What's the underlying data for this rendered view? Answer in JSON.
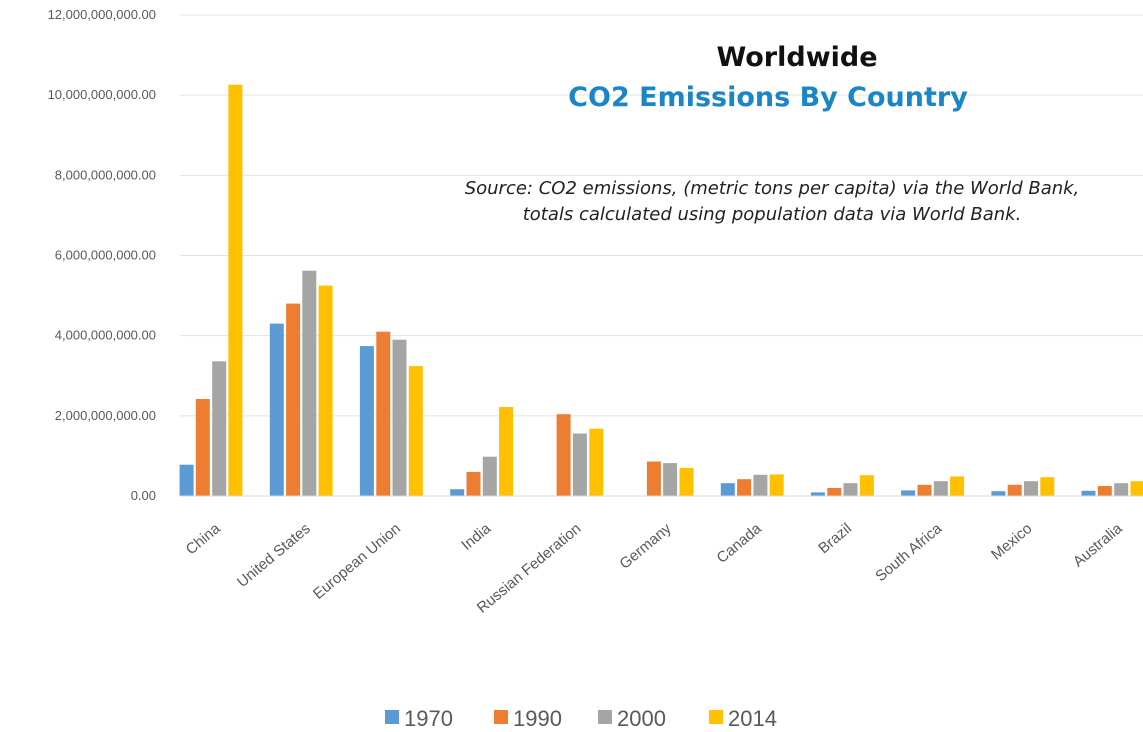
{
  "chart_data": {
    "type": "bar",
    "title": "Worldwide",
    "subtitle": "CO2 Emissions By Country",
    "source_lines": [
      "Source: CO2 emissions, (metric tons per capita) via the World Bank,",
      "totals calculated using population data via World Bank."
    ],
    "categories": [
      "China",
      "United States",
      "European Union",
      "India",
      "Russian Federation",
      "Germany",
      "Canada",
      "Brazil",
      "South Africa",
      "Mexico",
      "Australia"
    ],
    "series": [
      {
        "name": "1970",
        "color": "#5b9bd5",
        "values": [
          780000000,
          4300000000,
          3740000000,
          170000000,
          null,
          null,
          320000000,
          90000000,
          140000000,
          120000000,
          130000000
        ]
      },
      {
        "name": "1990",
        "color": "#ed7d31",
        "values": [
          2420000000,
          4800000000,
          4100000000,
          600000000,
          2040000000,
          860000000,
          420000000,
          200000000,
          280000000,
          280000000,
          250000000
        ]
      },
      {
        "name": "2000",
        "color": "#a5a5a5",
        "values": [
          3360000000,
          5620000000,
          3900000000,
          980000000,
          1560000000,
          820000000,
          530000000,
          320000000,
          370000000,
          370000000,
          320000000
        ]
      },
      {
        "name": "2014",
        "color": "#ffc000",
        "values": [
          10260000000,
          5250000000,
          3240000000,
          2220000000,
          1680000000,
          700000000,
          540000000,
          520000000,
          490000000,
          470000000,
          370000000
        ]
      }
    ],
    "yticks": [
      "0.00",
      "2,000,000,000.00",
      "4,000,000,000.00",
      "6,000,000,000.00",
      "8,000,000,000.00",
      "10,000,000,000.00",
      "12,000,000,000.00"
    ],
    "ylim": [
      0,
      12000000000
    ],
    "grid": true,
    "legend_position": "bottom",
    "xlabel": "",
    "ylabel": ""
  }
}
